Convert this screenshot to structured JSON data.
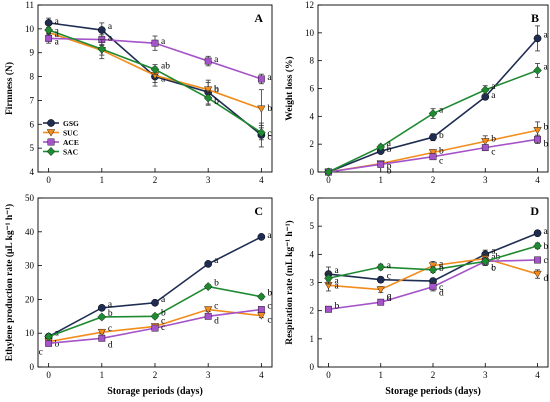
{
  "chart_data": [
    {
      "type": "line",
      "panel_label": "A",
      "ylabel": "Firmness (N)",
      "xlabel": "",
      "x": [
        0,
        1,
        2,
        3,
        4
      ],
      "xticks": [
        "0",
        "1",
        "2",
        "3",
        "4"
      ],
      "xlim": [
        -0.2,
        4.2
      ],
      "ylim": [
        4,
        11
      ],
      "yticks": [
        4,
        5,
        6,
        7,
        8,
        9,
        10,
        11
      ],
      "legend": "center-left",
      "series": [
        {
          "name": "GSG",
          "values": [
            10.25,
            9.95,
            8.0,
            7.35,
            5.55
          ],
          "errors": [
            0.2,
            0.3,
            0.4,
            0.5,
            0.5
          ],
          "letters": [
            "a",
            "a",
            "a",
            "b",
            "c"
          ]
        },
        {
          "name": "SUC",
          "values": [
            9.85,
            9.1,
            8.05,
            7.45,
            6.65
          ],
          "errors": [
            0.2,
            0.2,
            0.3,
            0.3,
            0.8
          ],
          "letters": [
            "a",
            "",
            "",
            "b",
            "b"
          ]
        },
        {
          "name": "ACE",
          "values": [
            9.6,
            9.55,
            9.4,
            8.65,
            7.9
          ],
          "errors": [
            0.2,
            0.2,
            0.3,
            0.2,
            0.2
          ],
          "letters": [
            "a",
            "a",
            "a",
            "a",
            "a"
          ]
        },
        {
          "name": "SAC",
          "values": [
            9.95,
            9.15,
            8.3,
            7.1,
            5.65
          ],
          "errors": [
            0.2,
            0.4,
            0.2,
            0.3,
            0.3
          ],
          "letters": [
            "a",
            "",
            "ab",
            "b",
            "c"
          ]
        }
      ]
    },
    {
      "type": "line",
      "panel_label": "B",
      "ylabel": "Weight loss (%)",
      "xlabel": "",
      "x": [
        0,
        1,
        2,
        3,
        4
      ],
      "xticks": [
        "0",
        "1",
        "2",
        "3",
        "4"
      ],
      "xlim": [
        -0.2,
        4.2
      ],
      "ylim": [
        0,
        12
      ],
      "yticks": [
        0,
        2,
        4,
        6,
        8,
        10,
        12
      ],
      "series": [
        {
          "name": "GSG",
          "values": [
            0,
            1.5,
            2.5,
            5.4,
            9.6
          ],
          "errors": [
            0.05,
            0.15,
            0.25,
            0.2,
            0.9
          ],
          "letters": [
            "",
            "b",
            "b",
            "a",
            "a"
          ]
        },
        {
          "name": "SUC",
          "values": [
            0,
            0.6,
            1.4,
            2.2,
            3.0
          ],
          "errors": [
            0.05,
            0.1,
            0.2,
            0.4,
            0.6
          ],
          "letters": [
            "",
            "b",
            "b",
            "b",
            "b"
          ]
        },
        {
          "name": "ACE",
          "values": [
            0,
            0.55,
            1.1,
            1.75,
            2.35
          ],
          "errors": [
            0.05,
            0.1,
            0.15,
            0.2,
            0.3
          ],
          "letters": [
            "",
            "b",
            "c",
            "c",
            "b"
          ]
        },
        {
          "name": "SAC",
          "values": [
            0,
            1.8,
            4.2,
            5.9,
            7.3
          ],
          "errors": [
            0.05,
            0.15,
            0.35,
            0.3,
            0.5
          ],
          "letters": [
            "",
            "a",
            "a",
            "a",
            "a"
          ]
        }
      ]
    },
    {
      "type": "line",
      "panel_label": "C",
      "ylabel": "Ethylene production rate (μL kg⁻¹ h⁻¹)",
      "xlabel": "Storage periods (days)",
      "x": [
        0,
        1,
        2,
        3,
        4
      ],
      "xticks": [
        "0",
        "1",
        "2",
        "3",
        "4"
      ],
      "xlim": [
        -0.2,
        4.2
      ],
      "ylim": [
        0,
        50
      ],
      "yticks": [
        0,
        10,
        20,
        30,
        40,
        50
      ],
      "series": [
        {
          "name": "GSG",
          "values": [
            9.0,
            17.5,
            19.0,
            30.5,
            38.5
          ],
          "errors": [
            0.5,
            0.6,
            0.6,
            0.6,
            0.6
          ],
          "letters": [
            "a",
            "a",
            "a",
            "a",
            "a"
          ]
        },
        {
          "name": "SUC",
          "values": [
            7.5,
            10.3,
            12.0,
            17.0,
            15.2
          ],
          "errors": [
            0.4,
            0.5,
            0.5,
            0.6,
            0.6
          ],
          "letters": [
            "b",
            "c",
            "c",
            "c",
            "c"
          ]
        },
        {
          "name": "ACE",
          "values": [
            7.0,
            8.5,
            11.5,
            15.0,
            17.0
          ],
          "errors": [
            0.4,
            0.5,
            0.5,
            0.6,
            0.6
          ],
          "letters": [
            "c",
            "d",
            "c",
            "d",
            "c"
          ]
        },
        {
          "name": "SAC",
          "values": [
            9.0,
            14.8,
            15.0,
            23.8,
            20.8
          ],
          "errors": [
            0.4,
            0.6,
            0.6,
            0.6,
            0.6
          ],
          "letters": [
            "",
            "b",
            "b",
            "b",
            "b"
          ]
        }
      ]
    },
    {
      "type": "line",
      "panel_label": "D",
      "ylabel": "Respiration rate (mL kg⁻¹ h⁻¹)",
      "xlabel": "Storage periods (days)",
      "x": [
        0,
        1,
        2,
        3,
        4
      ],
      "xticks": [
        "0",
        "1",
        "2",
        "3",
        "4"
      ],
      "xlim": [
        -0.2,
        4.2
      ],
      "ylim": [
        0,
        6
      ],
      "yticks": [
        0,
        1,
        2,
        3,
        4,
        5,
        6
      ],
      "series": [
        {
          "name": "GSG",
          "values": [
            3.3,
            3.1,
            3.05,
            4.0,
            4.75
          ],
          "errors": [
            0.25,
            0.1,
            0.1,
            0.15,
            0.1
          ],
          "letters": [
            "a",
            "c",
            "c",
            "a",
            "a"
          ]
        },
        {
          "name": "SUC",
          "values": [
            2.9,
            2.75,
            3.6,
            3.85,
            3.3
          ],
          "errors": [
            0.2,
            0.1,
            0.15,
            0.15,
            0.15
          ],
          "letters": [
            "a",
            "c",
            "a",
            "ab",
            "d"
          ]
        },
        {
          "name": "ACE",
          "values": [
            2.05,
            2.3,
            2.85,
            3.75,
            3.8
          ],
          "errors": [
            0.1,
            0.1,
            0.15,
            0.15,
            0.1
          ],
          "letters": [
            "b",
            "d",
            "d",
            "c",
            "c"
          ]
        },
        {
          "name": "SAC",
          "values": [
            3.15,
            3.55,
            3.45,
            3.75,
            4.3
          ],
          "errors": [
            0.2,
            0.1,
            0.1,
            0.15,
            0.1
          ],
          "letters": [
            "a",
            "a",
            "b",
            "b",
            "b"
          ]
        }
      ]
    }
  ],
  "colors": {
    "GSG": "#1f2d52",
    "SUC": "#f28c1c",
    "ACE": "#a454c8",
    "SAC": "#1f8a32",
    "axis": "#000000"
  },
  "markers": {
    "GSG": "circle",
    "SUC": "triangle-down",
    "ACE": "square",
    "SAC": "diamond"
  }
}
